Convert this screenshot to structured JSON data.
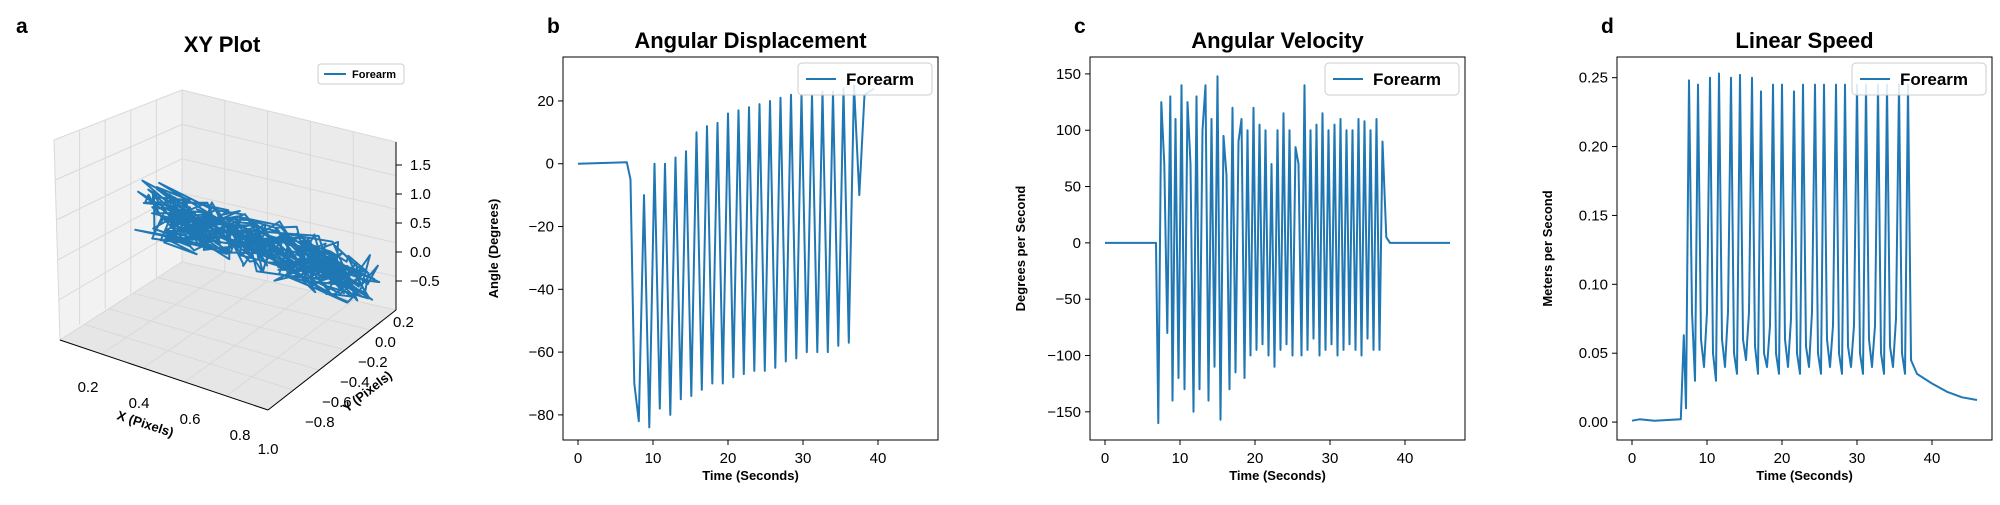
{
  "colors": {
    "series": "#1f77b4",
    "axis": "#000000",
    "pane": "#f2f2f2",
    "grid": "#d9d9d9",
    "legend_border": "#cccccc"
  },
  "chart_data": [
    {
      "type": "line",
      "projection": "3d",
      "panel_label": "a",
      "title": "XY Plot",
      "xlabel": "X (Pixels)",
      "ylabel": "Y (Pixels)",
      "zlabel": "",
      "xticks": [
        "0.2",
        "0.4",
        "0.6",
        "0.8",
        "1.0"
      ],
      "yticks": [
        "0.2",
        "0.0",
        "−0.2",
        "−0.4",
        "−0.6",
        "−0.8"
      ],
      "zticks": [
        "1.5",
        "1.0",
        "0.5",
        "0.0",
        "−0.5"
      ],
      "xlim": [
        0.1,
        1.05
      ],
      "ylim": [
        -0.85,
        0.25
      ],
      "zlim": [
        -0.75,
        1.6
      ],
      "grid": true,
      "legend": {
        "position": "top-right",
        "entries": [
          "Forearm"
        ]
      },
      "series": [
        {
          "name": "Forearm",
          "description_only": false
        }
      ]
    },
    {
      "type": "line",
      "panel_label": "b",
      "title": "Angular Displacement",
      "xlabel": "Time (Seconds)",
      "ylabel": "Angle (Degrees)",
      "xlim": [
        -2,
        48
      ],
      "ylim": [
        -88,
        34
      ],
      "xticks": [
        0,
        10,
        20,
        30,
        40
      ],
      "yticks": [
        20,
        0,
        -20,
        -40,
        -60,
        -80
      ],
      "ytick_labels": [
        "20",
        "0",
        "−20",
        "−40",
        "−60",
        "−80"
      ],
      "legend": {
        "position": "top-right",
        "entries": [
          "Forearm"
        ]
      },
      "series": [
        {
          "name": "Forearm",
          "x": [
            0,
            6.5,
            7.0,
            7.5,
            8.1,
            8.8,
            9.5,
            10.2,
            10.9,
            11.6,
            12.3,
            13.0,
            13.7,
            14.4,
            15.1,
            15.8,
            16.5,
            17.2,
            17.9,
            18.6,
            19.3,
            20.0,
            20.7,
            21.4,
            22.1,
            22.8,
            23.5,
            24.2,
            24.9,
            25.6,
            26.3,
            27.0,
            27.7,
            28.4,
            29.1,
            29.8,
            30.5,
            31.2,
            31.9,
            32.6,
            33.3,
            34.0,
            34.7,
            35.4,
            36.1,
            36.8,
            37.5,
            38.2,
            38.9,
            39.5
          ],
          "y": [
            0,
            0.5,
            -5,
            -70,
            -82,
            -10,
            -84,
            0,
            -78,
            0,
            -80,
            2,
            -75,
            4,
            -74,
            10,
            -72,
            12,
            -70,
            13,
            -70,
            16,
            -68,
            17,
            -67,
            18,
            -66,
            19,
            -66,
            20,
            -65,
            21,
            -63,
            22,
            -62,
            22,
            -60,
            22,
            -60,
            23,
            -60,
            23,
            -58,
            24,
            -57,
            25,
            -10,
            22,
            23,
            24
          ]
        }
      ]
    },
    {
      "type": "line",
      "panel_label": "c",
      "title": "Angular Velocity",
      "xlabel": "Time (Seconds)",
      "ylabel": "Degrees per Second",
      "xlim": [
        -2,
        48
      ],
      "ylim": [
        -175,
        165
      ],
      "xticks": [
        0,
        10,
        20,
        30,
        40
      ],
      "yticks": [
        150,
        100,
        50,
        0,
        -50,
        -100,
        -150
      ],
      "ytick_labels": [
        "150",
        "100",
        "50",
        "0",
        "−50",
        "−100",
        "−150"
      ],
      "legend": {
        "position": "top-right",
        "entries": [
          "Forearm"
        ]
      },
      "series": [
        {
          "name": "Forearm",
          "x": [
            0,
            6.8,
            7.1,
            7.5,
            7.9,
            8.3,
            8.7,
            9.0,
            9.4,
            9.8,
            10.2,
            10.6,
            11.0,
            11.4,
            11.8,
            12.2,
            12.6,
            13.0,
            13.4,
            13.8,
            14.2,
            14.6,
            15.0,
            15.4,
            15.8,
            16.2,
            16.6,
            17.0,
            17.4,
            17.8,
            18.2,
            18.6,
            19.0,
            19.4,
            19.8,
            20.2,
            20.6,
            21.0,
            21.4,
            21.8,
            22.2,
            22.6,
            23.0,
            23.4,
            23.8,
            24.2,
            24.6,
            25.0,
            25.4,
            25.8,
            26.2,
            26.6,
            27.0,
            27.4,
            27.8,
            28.2,
            28.6,
            29.0,
            29.4,
            29.8,
            30.2,
            30.6,
            31.0,
            31.4,
            31.8,
            32.2,
            32.6,
            33.0,
            33.4,
            33.8,
            34.2,
            34.6,
            35.0,
            35.4,
            35.8,
            36.2,
            36.6,
            37.0,
            37.5,
            38.0,
            46.0
          ],
          "y": [
            0,
            0,
            -160,
            125,
            70,
            -80,
            130,
            -140,
            110,
            -120,
            140,
            -130,
            125,
            70,
            -150,
            130,
            -130,
            100,
            140,
            -140,
            110,
            -110,
            148,
            -157,
            95,
            60,
            -130,
            120,
            -115,
            90,
            110,
            -120,
            100,
            -100,
            120,
            -95,
            105,
            -90,
            100,
            -100,
            70,
            -110,
            100,
            -95,
            115,
            -90,
            100,
            -100,
            85,
            70,
            -100,
            140,
            -95,
            100,
            -85,
            105,
            -100,
            115,
            -95,
            100,
            -90,
            105,
            -100,
            110,
            -95,
            100,
            -90,
            100,
            -95,
            110,
            -100,
            108,
            -85,
            100,
            -95,
            110,
            -95,
            90,
            5,
            0,
            0
          ]
        }
      ]
    },
    {
      "type": "line",
      "panel_label": "d",
      "title": "Linear Speed",
      "xlabel": "Time (Seconds)",
      "ylabel": "Meters per Second",
      "xlim": [
        -2,
        48
      ],
      "ylim": [
        -0.013,
        0.265
      ],
      "xticks": [
        0,
        10,
        20,
        30,
        40
      ],
      "yticks": [
        0.25,
        0.2,
        0.15,
        0.1,
        0.05,
        0.0
      ],
      "ytick_labels": [
        "0.25",
        "0.20",
        "0.15",
        "0.10",
        "0.05",
        "0.00"
      ],
      "legend": {
        "position": "top-right",
        "entries": [
          "Forearm"
        ]
      },
      "series": [
        {
          "name": "Forearm",
          "x": [
            0,
            1,
            3,
            6.5,
            6.9,
            7.2,
            7.6,
            8.0,
            8.4,
            8.8,
            9.2,
            9.6,
            10.0,
            10.4,
            10.8,
            11.2,
            11.6,
            12.0,
            12.4,
            12.8,
            13.2,
            13.6,
            14.0,
            14.4,
            14.8,
            15.2,
            15.6,
            16.0,
            16.4,
            16.8,
            17.2,
            17.6,
            18.0,
            18.4,
            18.8,
            19.2,
            19.6,
            20.0,
            20.4,
            20.8,
            21.2,
            21.6,
            22.0,
            22.4,
            22.8,
            23.2,
            23.6,
            24.0,
            24.4,
            24.8,
            25.2,
            25.6,
            26.0,
            26.4,
            26.8,
            27.2,
            27.6,
            28.0,
            28.4,
            28.8,
            29.2,
            29.6,
            30.0,
            30.4,
            30.8,
            31.2,
            31.6,
            32.0,
            32.4,
            32.8,
            33.2,
            33.6,
            34.0,
            34.4,
            34.8,
            35.2,
            35.6,
            36.0,
            36.4,
            36.8,
            37.2,
            38.0,
            40.0,
            42.0,
            44.0,
            46.0
          ],
          "y": [
            0.001,
            0.002,
            0.001,
            0.002,
            0.063,
            0.01,
            0.248,
            0.08,
            0.03,
            0.245,
            0.06,
            0.04,
            0.08,
            0.25,
            0.05,
            0.03,
            0.253,
            0.06,
            0.04,
            0.08,
            0.25,
            0.05,
            0.035,
            0.252,
            0.06,
            0.045,
            0.08,
            0.25,
            0.055,
            0.035,
            0.24,
            0.05,
            0.04,
            0.07,
            0.245,
            0.05,
            0.035,
            0.245,
            0.06,
            0.04,
            0.075,
            0.24,
            0.05,
            0.035,
            0.245,
            0.055,
            0.04,
            0.08,
            0.245,
            0.05,
            0.035,
            0.245,
            0.06,
            0.04,
            0.07,
            0.245,
            0.05,
            0.035,
            0.245,
            0.055,
            0.04,
            0.07,
            0.245,
            0.05,
            0.035,
            0.245,
            0.06,
            0.04,
            0.07,
            0.245,
            0.05,
            0.035,
            0.245,
            0.055,
            0.04,
            0.075,
            0.245,
            0.05,
            0.035,
            0.245,
            0.045,
            0.035,
            0.028,
            0.022,
            0.018,
            0.016
          ]
        }
      ]
    }
  ]
}
